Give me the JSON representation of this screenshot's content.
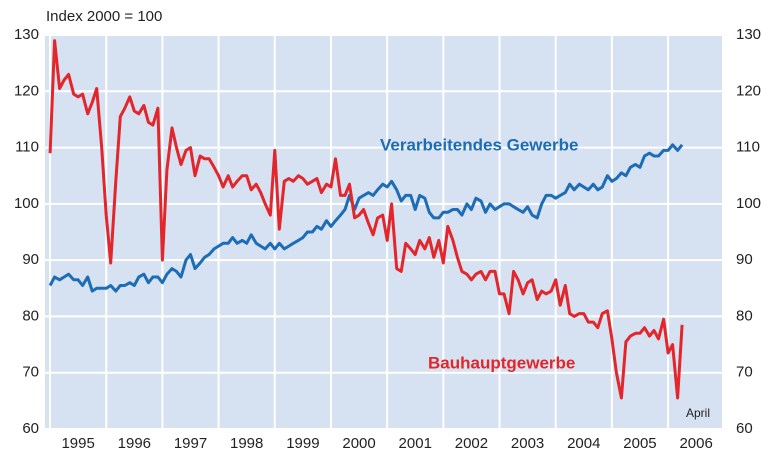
{
  "chart_data": {
    "type": "line",
    "title": "Index 2000 = 100",
    "annotation": "April",
    "x": [
      1995,
      1995.08,
      1995.17,
      1995.25,
      1995.33,
      1995.42,
      1995.5,
      1995.58,
      1995.67,
      1995.75,
      1995.83,
      1995.92,
      1996,
      1996.08,
      1996.17,
      1996.25,
      1996.33,
      1996.42,
      1996.5,
      1996.58,
      1996.67,
      1996.75,
      1996.83,
      1996.92,
      1997,
      1997.08,
      1997.17,
      1997.25,
      1997.33,
      1997.42,
      1997.5,
      1997.58,
      1997.67,
      1997.75,
      1997.83,
      1997.92,
      1998,
      1998.08,
      1998.17,
      1998.25,
      1998.33,
      1998.42,
      1998.5,
      1998.58,
      1998.67,
      1998.75,
      1998.83,
      1998.92,
      1999,
      1999.08,
      1999.17,
      1999.25,
      1999.33,
      1999.42,
      1999.5,
      1999.58,
      1999.67,
      1999.75,
      1999.83,
      1999.92,
      2000,
      2000.08,
      2000.17,
      2000.25,
      2000.33,
      2000.42,
      2000.5,
      2000.58,
      2000.67,
      2000.75,
      2000.83,
      2000.92,
      2001,
      2001.08,
      2001.17,
      2001.25,
      2001.33,
      2001.42,
      2001.5,
      2001.58,
      2001.67,
      2001.75,
      2001.83,
      2001.92,
      2002,
      2002.08,
      2002.17,
      2002.25,
      2002.33,
      2002.42,
      2002.5,
      2002.58,
      2002.67,
      2002.75,
      2002.83,
      2002.92,
      2003,
      2003.08,
      2003.17,
      2003.25,
      2003.33,
      2003.42,
      2003.5,
      2003.58,
      2003.67,
      2003.75,
      2003.83,
      2003.92,
      2004,
      2004.08,
      2004.17,
      2004.25,
      2004.33,
      2004.42,
      2004.5,
      2004.58,
      2004.67,
      2004.75,
      2004.83,
      2004.92,
      2005,
      2005.08,
      2005.17,
      2005.25,
      2005.33,
      2005.42,
      2005.5,
      2005.58,
      2005.67,
      2005.75,
      2005.83,
      2005.92,
      2006,
      2006.08,
      2006.17,
      2006.25
    ],
    "series": [
      {
        "name": "Verarbeitendes Gewerbe",
        "color": "#1c6db5",
        "values": [
          85.5,
          87,
          86.5,
          87,
          87.5,
          86.5,
          86.5,
          85.5,
          87,
          84.5,
          85,
          85,
          85,
          85.5,
          84.5,
          85.5,
          85.5,
          86,
          85.5,
          87,
          87.5,
          86,
          87,
          87,
          86,
          87.5,
          88.5,
          88,
          87,
          90,
          91,
          88.5,
          89.5,
          90.5,
          91,
          92,
          92.5,
          93,
          93,
          94,
          93,
          93.5,
          93,
          94.5,
          93,
          92.5,
          92,
          93,
          92,
          93,
          92,
          92.5,
          93,
          93.5,
          94,
          95,
          95,
          96,
          95.5,
          97,
          96,
          97,
          98,
          99,
          101.5,
          99,
          101,
          101.5,
          102,
          101.5,
          102.5,
          103.5,
          103,
          104,
          102.5,
          100.5,
          101.5,
          101.5,
          99,
          101.5,
          101,
          98.5,
          97.5,
          97.5,
          98.5,
          98.5,
          99,
          99,
          98,
          100,
          99,
          101,
          100.5,
          98.5,
          100,
          99,
          99.5,
          100,
          100,
          99.5,
          99,
          98.5,
          99.5,
          98,
          97.5,
          100,
          101.5,
          101.5,
          101,
          101.5,
          102,
          103.5,
          102.5,
          103.5,
          103,
          102.5,
          103.5,
          102.5,
          103,
          105,
          104,
          104.5,
          105.5,
          105,
          106.5,
          107,
          106.5,
          108.5,
          109,
          108.5,
          108.5,
          109.5,
          109.5,
          110.5,
          109.5,
          110.5
        ]
      },
      {
        "name": "Bauhauptgewerbe",
        "color": "#e2262b",
        "values": [
          109,
          129,
          120.5,
          122,
          123,
          119.5,
          119,
          119.5,
          116,
          118,
          120.5,
          110,
          98,
          89.5,
          104,
          115.5,
          117,
          119,
          116.5,
          116,
          117.5,
          114.5,
          114,
          117,
          90,
          106,
          113.5,
          110,
          107,
          109.5,
          110,
          105,
          108.5,
          108,
          108,
          106.5,
          105,
          103,
          105,
          103,
          104,
          105,
          105,
          102.5,
          103.5,
          102,
          100,
          98,
          109.5,
          95.5,
          104,
          104.5,
          104,
          105,
          104.5,
          103.5,
          104,
          104.5,
          102,
          103.5,
          103,
          108,
          101.5,
          101.5,
          103.5,
          97.5,
          98,
          99,
          96.5,
          94.5,
          97.5,
          98,
          93.5,
          100,
          88.5,
          88,
          93,
          92,
          91,
          93.5,
          92,
          94,
          90.5,
          93.5,
          89.5,
          96,
          93.5,
          90.5,
          88,
          87.5,
          86.5,
          87.5,
          88,
          86.5,
          88,
          88,
          84,
          84,
          80.5,
          88,
          86.5,
          84,
          86,
          86.5,
          83,
          84.5,
          84,
          84.5,
          86.5,
          82,
          85.5,
          80.5,
          80,
          80.5,
          80.5,
          79,
          79,
          78,
          80.5,
          81,
          76,
          70,
          65.5,
          75.5,
          76.5,
          77,
          77,
          78,
          76.5,
          77.5,
          76,
          79.5,
          73.5,
          75,
          65.5,
          78.5
        ]
      }
    ],
    "xlim": [
      1994.91,
      2006.96
    ],
    "xticks": [
      {
        "value": 1995,
        "label": "1995"
      },
      {
        "value": 1996,
        "label": "1996"
      },
      {
        "value": 1997,
        "label": "1997"
      },
      {
        "value": 1998,
        "label": "1998"
      },
      {
        "value": 1999,
        "label": "1999"
      },
      {
        "value": 2000,
        "label": "2000"
      },
      {
        "value": 2001,
        "label": "2001"
      },
      {
        "value": 2002,
        "label": "2002"
      },
      {
        "value": 2003,
        "label": "2003"
      },
      {
        "value": 2004,
        "label": "2004"
      },
      {
        "value": 2005,
        "label": "2005"
      },
      {
        "value": 2006,
        "label": "2006"
      }
    ],
    "ylim": [
      60,
      130
    ],
    "yticks": [
      60,
      70,
      80,
      90,
      100,
      110,
      120,
      130
    ],
    "y2lim": [
      60,
      130
    ],
    "y2ticks": [
      60,
      70,
      80,
      90,
      100,
      110,
      120,
      130
    ],
    "background": "#d6e1f1",
    "grid": true
  }
}
